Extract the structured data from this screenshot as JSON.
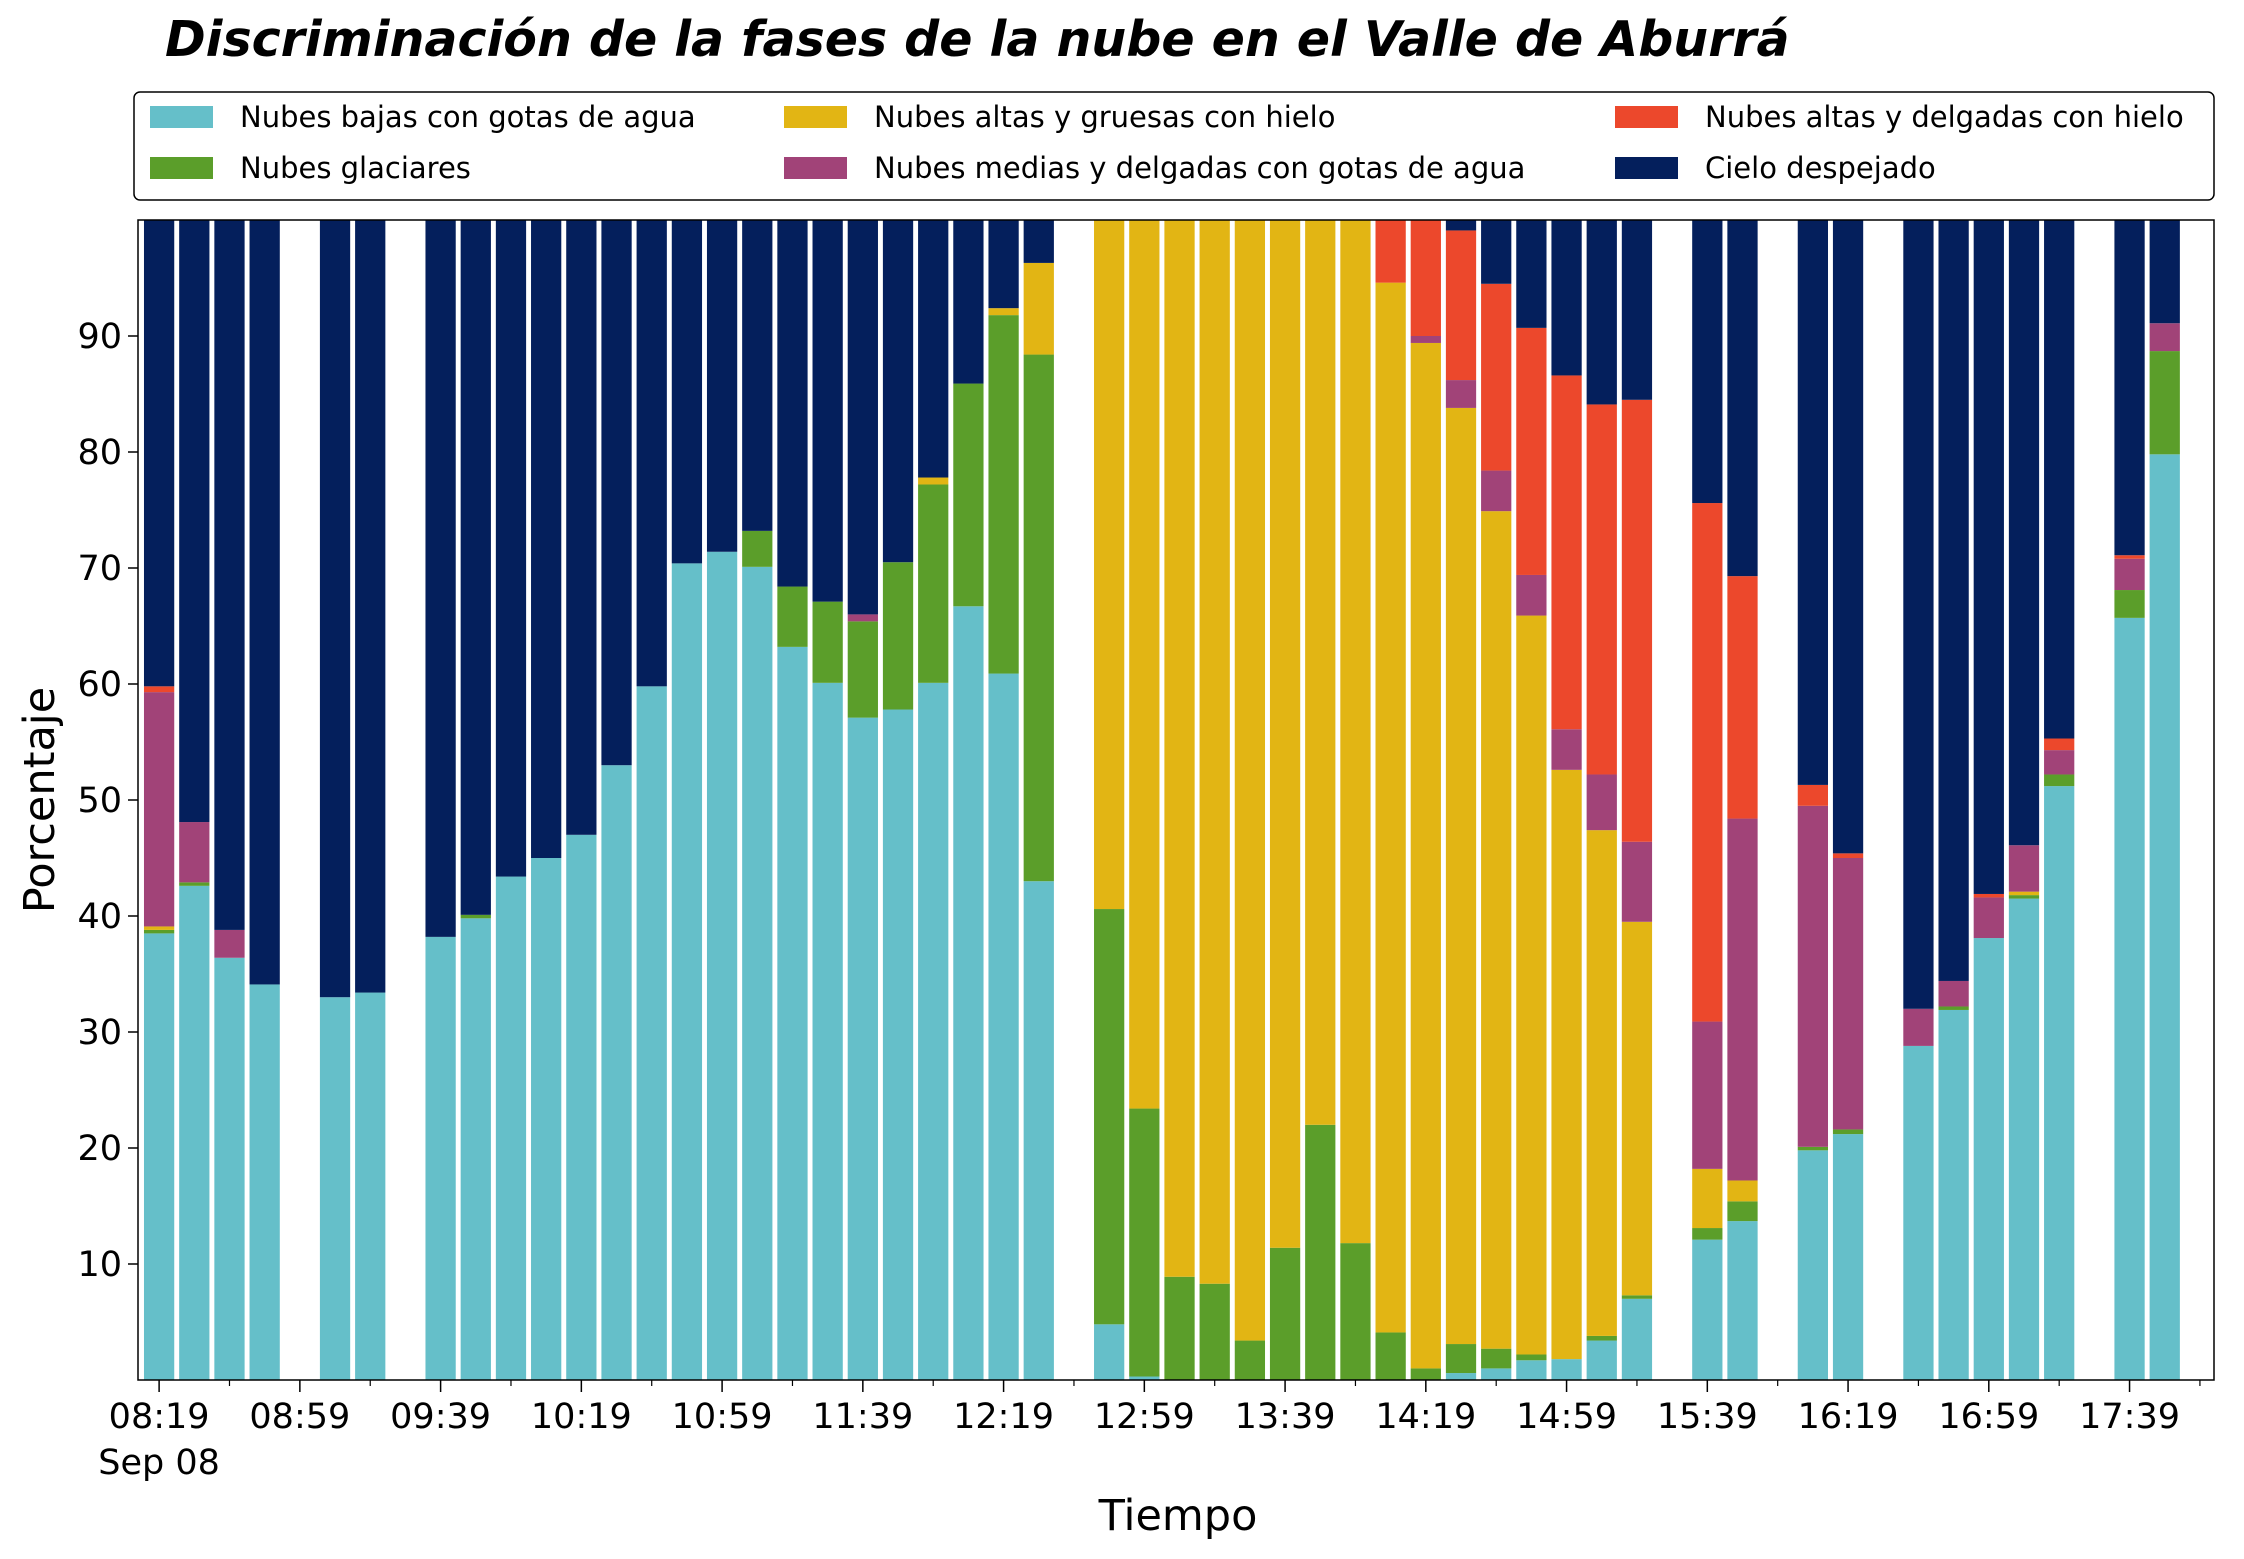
{
  "chart_data": {
    "type": "bar",
    "stacked": true,
    "title": "Discriminación de la fases de la nube en el Valle de Aburrá",
    "xlabel": "Tiempo",
    "ylabel": "Porcentaje",
    "ylim": [
      0,
      100
    ],
    "yticks": [
      10,
      20,
      30,
      40,
      50,
      60,
      70,
      80,
      90
    ],
    "grid": false,
    "legend_position": "top",
    "bar_interval_minutes": 10,
    "xlim": [
      "08:13",
      "18:03"
    ],
    "xticks": [
      {
        "time": "08:19",
        "label": "08:19",
        "sublabel": "Sep 08"
      },
      {
        "time": "08:59",
        "label": "08:59"
      },
      {
        "time": "09:39",
        "label": "09:39"
      },
      {
        "time": "10:19",
        "label": "10:19"
      },
      {
        "time": "10:59",
        "label": "10:59"
      },
      {
        "time": "11:39",
        "label": "11:39"
      },
      {
        "time": "12:19",
        "label": "12:19"
      },
      {
        "time": "12:59",
        "label": "12:59"
      },
      {
        "time": "13:39",
        "label": "13:39"
      },
      {
        "time": "14:19",
        "label": "14:19"
      },
      {
        "time": "14:59",
        "label": "14:59"
      },
      {
        "time": "15:39",
        "label": "15:39"
      },
      {
        "time": "16:19",
        "label": "16:19"
      },
      {
        "time": "16:59",
        "label": "16:59"
      },
      {
        "time": "17:39",
        "label": "17:39"
      }
    ],
    "series": [
      {
        "name": "Nubes bajas con gotas de agua",
        "color": "#65bfc9"
      },
      {
        "name": "Nubes glaciares",
        "color": "#5b9e2a"
      },
      {
        "name": "Nubes altas y gruesas con hielo",
        "color": "#e2b514"
      },
      {
        "name": "Nubes medias y delgadas con gotas de agua",
        "color": "#a14378"
      },
      {
        "name": "Nubes altas y delgadas con hielo",
        "color": "#ec482c"
      },
      {
        "name": "Cielo despejado",
        "color": "#041f5c"
      }
    ],
    "bars": [
      {
        "time": "08:19",
        "values": [
          38.5,
          0.3,
          0.3,
          20.2,
          0.5,
          40.2
        ]
      },
      {
        "time": "08:29",
        "values": [
          42.6,
          0.3,
          0.0,
          5.2,
          0.0,
          51.9
        ]
      },
      {
        "time": "08:39",
        "values": [
          36.4,
          0.0,
          0.0,
          2.4,
          0.0,
          61.2
        ]
      },
      {
        "time": "08:49",
        "values": [
          34.1,
          0.0,
          0.0,
          0.0,
          0.0,
          65.9
        ]
      },
      {
        "time": "09:09",
        "values": [
          33.0,
          0.0,
          0.0,
          0.0,
          0.0,
          67.0
        ]
      },
      {
        "time": "09:19",
        "values": [
          33.4,
          0.0,
          0.0,
          0.0,
          0.0,
          66.6
        ]
      },
      {
        "time": "09:39",
        "values": [
          38.2,
          0.0,
          0.0,
          0.0,
          0.0,
          61.8
        ]
      },
      {
        "time": "09:49",
        "values": [
          39.8,
          0.3,
          0.0,
          0.0,
          0.0,
          59.9
        ]
      },
      {
        "time": "09:59",
        "values": [
          43.4,
          0.0,
          0.0,
          0.0,
          0.0,
          56.6
        ]
      },
      {
        "time": "10:09",
        "values": [
          45.0,
          0.0,
          0.0,
          0.0,
          0.0,
          55.0
        ]
      },
      {
        "time": "10:19",
        "values": [
          47.0,
          0.0,
          0.0,
          0.0,
          0.0,
          53.0
        ]
      },
      {
        "time": "10:29",
        "values": [
          53.0,
          0.0,
          0.0,
          0.0,
          0.0,
          47.0
        ]
      },
      {
        "time": "10:39",
        "values": [
          59.8,
          0.0,
          0.0,
          0.0,
          0.0,
          40.2
        ]
      },
      {
        "time": "10:49",
        "values": [
          70.4,
          0.0,
          0.0,
          0.0,
          0.0,
          29.6
        ]
      },
      {
        "time": "10:59",
        "values": [
          71.4,
          0.0,
          0.0,
          0.0,
          0.0,
          28.6
        ]
      },
      {
        "time": "11:09",
        "values": [
          70.1,
          3.1,
          0.0,
          0.0,
          0.0,
          26.8
        ]
      },
      {
        "time": "11:19",
        "values": [
          63.2,
          5.2,
          0.0,
          0.0,
          0.0,
          31.6
        ]
      },
      {
        "time": "11:29",
        "values": [
          60.1,
          7.0,
          0.0,
          0.0,
          0.0,
          32.9
        ]
      },
      {
        "time": "11:39",
        "values": [
          57.1,
          8.3,
          0.0,
          0.6,
          0.0,
          34.0
        ]
      },
      {
        "time": "11:49",
        "values": [
          57.8,
          12.7,
          0.0,
          0.0,
          0.0,
          29.5
        ]
      },
      {
        "time": "11:59",
        "values": [
          60.1,
          17.1,
          0.6,
          0.0,
          0.0,
          22.2
        ]
      },
      {
        "time": "12:09",
        "values": [
          66.7,
          19.2,
          0.0,
          0.0,
          0.0,
          14.1
        ]
      },
      {
        "time": "12:19",
        "values": [
          60.9,
          30.9,
          0.6,
          0.0,
          0.0,
          7.6
        ]
      },
      {
        "time": "12:29",
        "values": [
          43.0,
          45.4,
          7.9,
          0.0,
          0.0,
          3.7
        ]
      },
      {
        "time": "12:49",
        "values": [
          4.8,
          35.8,
          59.4,
          0.0,
          0.0,
          0.0
        ]
      },
      {
        "time": "12:59",
        "values": [
          0.3,
          23.1,
          76.6,
          0.0,
          0.0,
          0.0
        ]
      },
      {
        "time": "13:09",
        "values": [
          0.0,
          8.9,
          91.1,
          0.0,
          0.0,
          0.0
        ]
      },
      {
        "time": "13:19",
        "values": [
          0.0,
          8.3,
          91.7,
          0.0,
          0.0,
          0.0
        ]
      },
      {
        "time": "13:29",
        "values": [
          0.0,
          3.4,
          96.6,
          0.0,
          0.0,
          0.0
        ]
      },
      {
        "time": "13:39",
        "values": [
          0.0,
          11.4,
          88.6,
          0.0,
          0.0,
          0.0
        ]
      },
      {
        "time": "13:49",
        "values": [
          0.0,
          22.0,
          78.0,
          0.0,
          0.0,
          0.0
        ]
      },
      {
        "time": "13:59",
        "values": [
          0.0,
          11.8,
          88.2,
          0.0,
          0.0,
          0.0
        ]
      },
      {
        "time": "14:09",
        "values": [
          0.0,
          4.1,
          90.5,
          0.0,
          5.4,
          0.0
        ]
      },
      {
        "time": "14:19",
        "values": [
          0.0,
          1.0,
          88.4,
          0.6,
          10.0,
          0.0
        ]
      },
      {
        "time": "14:29",
        "values": [
          0.6,
          2.5,
          80.7,
          2.4,
          12.9,
          0.9
        ]
      },
      {
        "time": "14:39",
        "values": [
          1.0,
          1.7,
          72.2,
          3.5,
          16.1,
          5.5
        ]
      },
      {
        "time": "14:49",
        "values": [
          1.7,
          0.5,
          63.7,
          3.5,
          21.3,
          9.3
        ]
      },
      {
        "time": "14:59",
        "values": [
          1.8,
          0.0,
          50.8,
          3.5,
          30.5,
          13.4
        ]
      },
      {
        "time": "15:09",
        "values": [
          3.4,
          0.4,
          43.6,
          4.8,
          31.9,
          15.9
        ]
      },
      {
        "time": "15:19",
        "values": [
          7.0,
          0.3,
          32.2,
          6.9,
          38.1,
          15.5
        ]
      },
      {
        "time": "15:39",
        "values": [
          12.1,
          1.0,
          5.1,
          12.7,
          44.7,
          24.4
        ]
      },
      {
        "time": "15:49",
        "values": [
          13.7,
          1.7,
          1.8,
          31.2,
          20.9,
          30.7
        ]
      },
      {
        "time": "16:09",
        "values": [
          19.8,
          0.3,
          0.0,
          29.4,
          1.8,
          48.7
        ]
      },
      {
        "time": "16:19",
        "values": [
          21.2,
          0.4,
          0.0,
          23.4,
          0.4,
          54.6
        ]
      },
      {
        "time": "16:39",
        "values": [
          28.8,
          0.0,
          0.0,
          3.2,
          0.0,
          68.0
        ]
      },
      {
        "time": "16:49",
        "values": [
          31.9,
          0.3,
          0.0,
          2.2,
          0.0,
          65.6
        ]
      },
      {
        "time": "16:59",
        "values": [
          38.1,
          0.0,
          0.0,
          3.5,
          0.3,
          58.1
        ]
      },
      {
        "time": "17:09",
        "values": [
          41.5,
          0.3,
          0.3,
          4.0,
          0.0,
          53.9
        ]
      },
      {
        "time": "17:19",
        "values": [
          51.2,
          1.0,
          0.0,
          2.1,
          1.0,
          44.7
        ]
      },
      {
        "time": "17:39",
        "values": [
          65.7,
          2.4,
          0.0,
          2.7,
          0.3,
          28.9
        ]
      },
      {
        "time": "17:49",
        "values": [
          79.8,
          8.9,
          0.0,
          2.4,
          0.0,
          8.9
        ]
      }
    ]
  }
}
